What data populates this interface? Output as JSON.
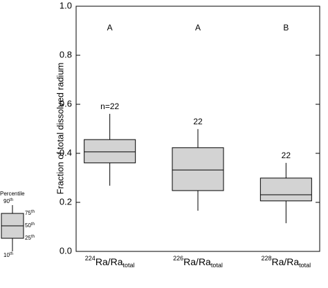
{
  "chart_data": {
    "type": "box",
    "ylabel": "Fraction of total dissolved radium",
    "categories": [
      {
        "sup": "224",
        "main": "Ra/Ra",
        "sub": "total"
      },
      {
        "sup": "226",
        "main": "Ra/Ra",
        "sub": "total"
      },
      {
        "sup": "228",
        "main": "Ra/Ra",
        "sub": "total"
      }
    ],
    "boxes": [
      {
        "whislo": 0.268,
        "q1": 0.361,
        "med": 0.406,
        "q3": 0.456,
        "whishi": 0.561
      },
      {
        "whislo": 0.166,
        "q1": 0.248,
        "med": 0.332,
        "q3": 0.423,
        "whishi": 0.499
      },
      {
        "whislo": 0.115,
        "q1": 0.206,
        "med": 0.231,
        "q3": 0.299,
        "whishi": 0.361
      }
    ],
    "n_labels": [
      "n=22",
      "22",
      "22"
    ],
    "group_labels": [
      "A",
      "A",
      "B"
    ],
    "color": "#d3d3d3",
    "ylim": [
      0,
      1
    ],
    "yticks": [
      {
        "value": 0,
        "label": "0.0"
      },
      0.2,
      0.4,
      0.6,
      0.8,
      {
        "value": 1,
        "label": "1.0"
      }
    ],
    "legend": {
      "title": "Percentile",
      "entries": [
        {
          "number": "90",
          "suffix": "th"
        },
        {
          "number": "75",
          "suffix": "th"
        },
        {
          "number": "50",
          "suffix": "th"
        },
        {
          "number": "25",
          "suffix": "th"
        },
        {
          "number": "10",
          "suffix": "th"
        }
      ]
    }
  }
}
